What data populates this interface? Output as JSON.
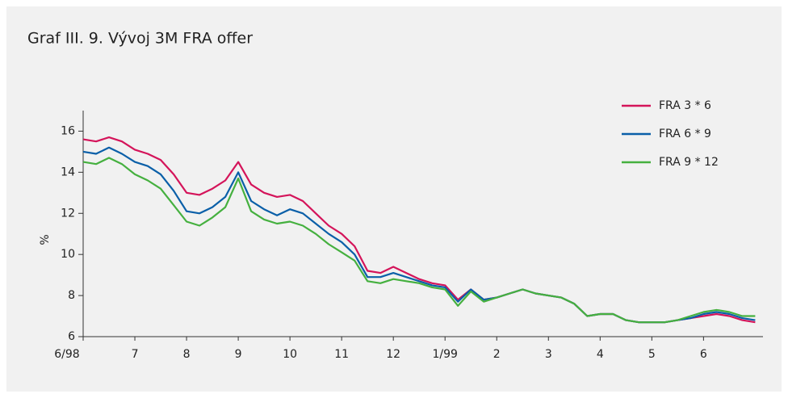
{
  "chart_data": {
    "type": "line",
    "title": "Graf III. 9. Vývoj 3M FRA offer",
    "ylabel": "%",
    "x": [
      0,
      0.25,
      0.5,
      0.75,
      1,
      1.25,
      1.5,
      1.75,
      2,
      2.25,
      2.5,
      2.75,
      3,
      3.25,
      3.5,
      3.75,
      4,
      4.25,
      4.5,
      4.75,
      5,
      5.25,
      5.5,
      5.75,
      6,
      6.25,
      6.5,
      6.75,
      7,
      7.25,
      7.5,
      7.75,
      8,
      8.25,
      8.5,
      8.75,
      9,
      9.25,
      9.5,
      9.75,
      10,
      10.25,
      10.5,
      10.75,
      11,
      11.25,
      11.5,
      11.75,
      12,
      12.25,
      12.5,
      12.75,
      13
    ],
    "series": [
      {
        "name": "FRA 3 * 6",
        "color": "#d4145a",
        "values": [
          15.6,
          15.5,
          15.7,
          15.5,
          15.1,
          14.9,
          14.6,
          13.9,
          13.0,
          12.9,
          13.2,
          13.6,
          14.5,
          13.4,
          13.0,
          12.8,
          12.9,
          12.6,
          12.0,
          11.4,
          11.0,
          10.4,
          9.2,
          9.1,
          9.4,
          9.1,
          8.8,
          8.6,
          8.5,
          7.8,
          8.3,
          7.8,
          7.9,
          8.1,
          8.3,
          8.1,
          8.0,
          7.9,
          7.6,
          7.0,
          7.1,
          7.1,
          6.8,
          6.7,
          6.7,
          6.7,
          6.8,
          6.9,
          7.0,
          7.1,
          7.0,
          6.8,
          6.7
        ]
      },
      {
        "name": "FRA 6 * 9",
        "color": "#0a5fa8",
        "values": [
          15.0,
          14.9,
          15.2,
          14.9,
          14.5,
          14.3,
          13.9,
          13.1,
          12.1,
          12.0,
          12.3,
          12.8,
          14.0,
          12.6,
          12.2,
          11.9,
          12.2,
          12.0,
          11.5,
          11.0,
          10.6,
          10.0,
          8.9,
          8.9,
          9.1,
          8.9,
          8.7,
          8.5,
          8.4,
          7.7,
          8.3,
          7.8,
          7.9,
          8.1,
          8.3,
          8.1,
          8.0,
          7.9,
          7.6,
          7.0,
          7.1,
          7.1,
          6.8,
          6.7,
          6.7,
          6.7,
          6.8,
          6.9,
          7.1,
          7.2,
          7.1,
          6.9,
          6.8
        ]
      },
      {
        "name": "FRA 9 * 12",
        "color": "#45b03f",
        "values": [
          14.5,
          14.4,
          14.7,
          14.4,
          13.9,
          13.6,
          13.2,
          12.4,
          11.6,
          11.4,
          11.8,
          12.3,
          13.7,
          12.1,
          11.7,
          11.5,
          11.6,
          11.4,
          11.0,
          10.5,
          10.1,
          9.7,
          8.7,
          8.6,
          8.8,
          8.7,
          8.6,
          8.4,
          8.3,
          7.5,
          8.2,
          7.7,
          7.9,
          8.1,
          8.3,
          8.1,
          8.0,
          7.9,
          7.6,
          7.0,
          7.1,
          7.1,
          6.8,
          6.7,
          6.7,
          6.7,
          6.8,
          7.0,
          7.2,
          7.3,
          7.2,
          7.0,
          7.0
        ]
      }
    ],
    "xlim": [
      0,
      13.15
    ],
    "xticks": [
      {
        "value": 0,
        "label": "6/98"
      },
      {
        "value": 1,
        "label": "7"
      },
      {
        "value": 2,
        "label": "8"
      },
      {
        "value": 3,
        "label": "9"
      },
      {
        "value": 4,
        "label": "10"
      },
      {
        "value": 5,
        "label": "11"
      },
      {
        "value": 6,
        "label": "12"
      },
      {
        "value": 7,
        "label": "1/99"
      },
      {
        "value": 8,
        "label": "2"
      },
      {
        "value": 9,
        "label": "3"
      },
      {
        "value": 10,
        "label": "4"
      },
      {
        "value": 11,
        "label": "5"
      },
      {
        "value": 12,
        "label": "6"
      }
    ],
    "ylim": [
      6,
      17
    ],
    "yticks": [
      6,
      8,
      10,
      12,
      14,
      16
    ],
    "legend": "upper right",
    "grid": false
  }
}
